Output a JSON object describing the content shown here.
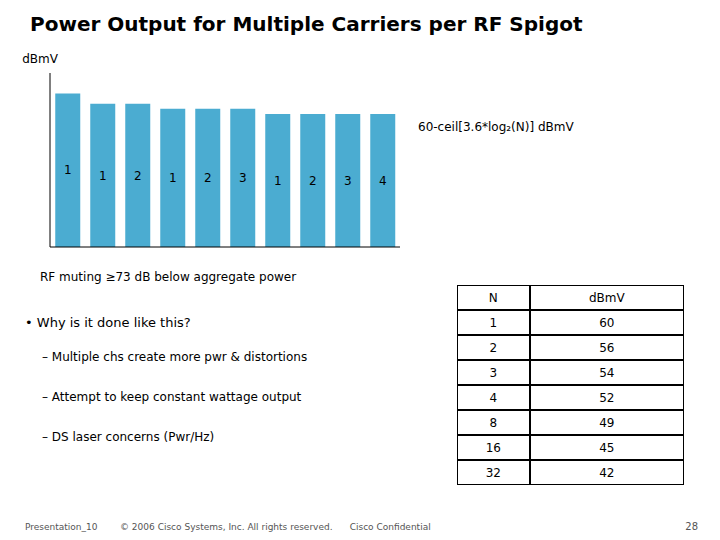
{
  "chart_data": {
    "type": "bar",
    "title": "Power Output for Multiple Carriers per RF Spigot",
    "ylabel": "dBmV",
    "categories": [
      "1",
      "1",
      "2",
      "1",
      "2",
      "3",
      "1",
      "2",
      "3",
      "4"
    ],
    "values": [
      60,
      56,
      56,
      54,
      54,
      54,
      52,
      52,
      52,
      52
    ],
    "color": "#4BACD1",
    "ylim": [
      0,
      68
    ],
    "tick_labels": false,
    "grid": false,
    "annotations": [
      "60-ceil[3.6*log₂(N)] dBmV",
      "RF muting ≥73 dB below aggregate power"
    ],
    "bullets": [
      "• Why is it done like this?",
      "– Multiple chs create more pwr & distortions",
      "– Attempt to keep constant wattage output",
      "– DS laser concerns (Pwr/Hz)"
    ],
    "table": {
      "headers": [
        "N",
        "dBmV"
      ],
      "rows": [
        [
          1,
          60
        ],
        [
          2,
          56
        ],
        [
          3,
          54
        ],
        [
          4,
          52
        ],
        [
          8,
          49
        ],
        [
          16,
          45
        ],
        [
          32,
          42
        ]
      ]
    },
    "footer": [
      "Presentation_10",
      "© 2006 Cisco Systems, Inc. All rights reserved.      Cisco Confidential",
      "28"
    ]
  }
}
